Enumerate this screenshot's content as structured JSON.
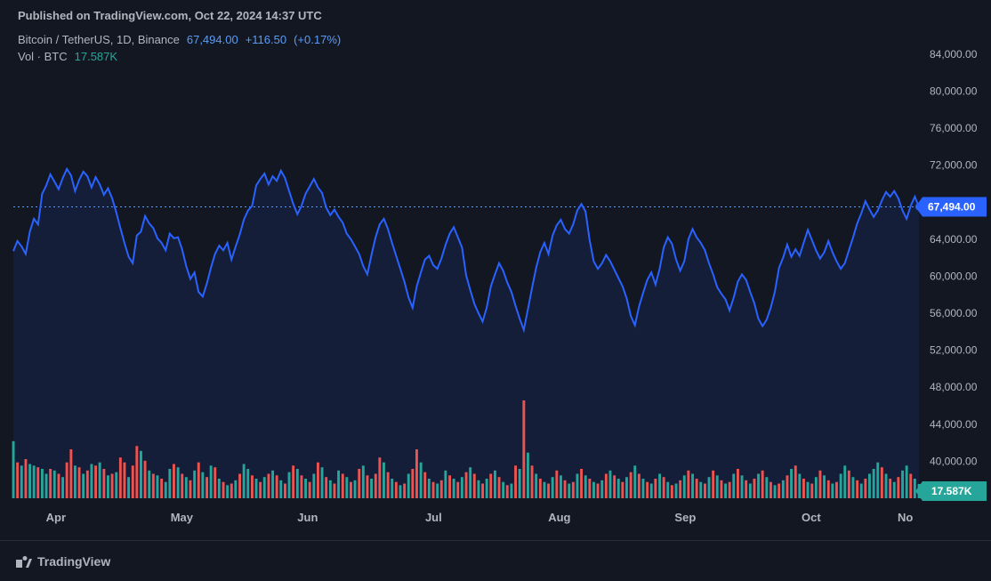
{
  "header": {
    "published_prefix": "Published on",
    "site": "TradingView.com",
    "date": "Oct 22, 2024 14:37 UTC"
  },
  "symbol": {
    "name": "Bitcoin / TetherUS, 1D, Binance",
    "last_price": "67,494.00",
    "change_abs": "+116.50",
    "change_pct": "(+0.17%)"
  },
  "volume": {
    "label": "Vol · BTC",
    "value": "17.587K"
  },
  "chart": {
    "type": "line+area+volume",
    "background_color": "#131722",
    "text_color": "#b2b5be",
    "line_color": "#2962ff",
    "area_fill_color": "rgba(41,98,255,0.10)",
    "dotted_line_color": "#5b9cf6",
    "price_badge_bg": "#2962ff",
    "price_badge_text": "67,494.00",
    "vol_badge_bg": "#26a69a",
    "vol_badge_text": "17.587K",
    "y": {
      "min": 36000,
      "max": 86000,
      "ticks": [
        40000,
        44000,
        48000,
        52000,
        56000,
        60000,
        64000,
        68000,
        72000,
        76000,
        80000,
        84000
      ],
      "tick_labels": [
        "40,000.00",
        "44,000.00",
        "48,000.00",
        "52,000.00",
        "56,000.00",
        "60,000.00",
        "64,000.00",
        "68,000.00",
        "72,000.00",
        "76,000.00",
        "80,000.00",
        "84,000.00"
      ]
    },
    "x": {
      "months": [
        "Apr",
        "May",
        "Jun",
        "Jul",
        "Aug",
        "Sep",
        "Oct",
        "No"
      ],
      "month_positions": [
        0.047,
        0.186,
        0.325,
        0.464,
        0.603,
        0.742,
        0.881,
        0.985
      ]
    },
    "current_price_y": 67494,
    "price_series": [
      62700,
      63800,
      63200,
      62400,
      64800,
      66200,
      65600,
      68900,
      69800,
      71000,
      70200,
      69400,
      70600,
      71600,
      70900,
      69200,
      70400,
      71300,
      70800,
      69600,
      70700,
      69900,
      68800,
      69500,
      68400,
      66900,
      65200,
      63600,
      62100,
      61400,
      64400,
      64800,
      66500,
      65700,
      65200,
      64100,
      63600,
      62800,
      64600,
      64100,
      64200,
      62900,
      61100,
      59700,
      60400,
      58300,
      57800,
      59200,
      60900,
      62400,
      63300,
      62800,
      63600,
      61800,
      63200,
      64500,
      66100,
      67100,
      67600,
      69800,
      70500,
      71100,
      69900,
      70800,
      70300,
      71400,
      70600,
      69200,
      67800,
      66700,
      67600,
      68900,
      69700,
      70500,
      69600,
      69000,
      67400,
      66600,
      67200,
      66400,
      65800,
      64600,
      64000,
      63200,
      62400,
      61100,
      60200,
      62300,
      64200,
      65600,
      66200,
      65100,
      63600,
      62200,
      60800,
      59400,
      57700,
      56600,
      58900,
      60400,
      61800,
      62200,
      61200,
      60800,
      61900,
      63400,
      64600,
      65300,
      64200,
      63100,
      60100,
      58500,
      57000,
      56000,
      55100,
      56600,
      58900,
      60200,
      61400,
      60600,
      59300,
      58300,
      56800,
      55400,
      54200,
      56400,
      58700,
      60900,
      62600,
      63600,
      62400,
      64400,
      65500,
      66100,
      65100,
      64600,
      65600,
      67100,
      67800,
      67000,
      63900,
      61600,
      60800,
      61400,
      62300,
      61600,
      60700,
      59800,
      58900,
      57600,
      55700,
      54700,
      56700,
      58200,
      59600,
      60400,
      59100,
      60800,
      63100,
      64200,
      63500,
      61800,
      60600,
      61600,
      64000,
      65100,
      64200,
      63600,
      62800,
      61400,
      60200,
      58800,
      58100,
      57500,
      56300,
      57700,
      59400,
      60200,
      59600,
      58300,
      57100,
      55400,
      54600,
      55300,
      56600,
      58300,
      60900,
      62000,
      63400,
      62100,
      62900,
      62200,
      63600,
      65000,
      63900,
      62800,
      61900,
      62600,
      63800,
      62600,
      61600,
      60800,
      61400,
      62800,
      64200,
      65700,
      66800,
      68100,
      67200,
      66400,
      67100,
      68200,
      69100,
      68600,
      69200,
      68400,
      67100,
      66200,
      67600,
      68600,
      67494
    ],
    "volume_up_color": "#26a69a",
    "volume_down_color": "#ef5350",
    "volume_max": 120,
    "volume_series": [
      {
        "v": 70,
        "d": "u"
      },
      {
        "v": 44,
        "d": "d"
      },
      {
        "v": 40,
        "d": "u"
      },
      {
        "v": 48,
        "d": "d"
      },
      {
        "v": 42,
        "d": "u"
      },
      {
        "v": 40,
        "d": "u"
      },
      {
        "v": 38,
        "d": "d"
      },
      {
        "v": 36,
        "d": "u"
      },
      {
        "v": 30,
        "d": "u"
      },
      {
        "v": 36,
        "d": "d"
      },
      {
        "v": 34,
        "d": "u"
      },
      {
        "v": 30,
        "d": "d"
      },
      {
        "v": 26,
        "d": "u"
      },
      {
        "v": 44,
        "d": "d"
      },
      {
        "v": 60,
        "d": "d"
      },
      {
        "v": 40,
        "d": "u"
      },
      {
        "v": 38,
        "d": "d"
      },
      {
        "v": 30,
        "d": "u"
      },
      {
        "v": 34,
        "d": "d"
      },
      {
        "v": 42,
        "d": "u"
      },
      {
        "v": 40,
        "d": "d"
      },
      {
        "v": 44,
        "d": "u"
      },
      {
        "v": 36,
        "d": "d"
      },
      {
        "v": 28,
        "d": "u"
      },
      {
        "v": 30,
        "d": "d"
      },
      {
        "v": 32,
        "d": "u"
      },
      {
        "v": 50,
        "d": "d"
      },
      {
        "v": 44,
        "d": "d"
      },
      {
        "v": 26,
        "d": "u"
      },
      {
        "v": 40,
        "d": "d"
      },
      {
        "v": 64,
        "d": "d"
      },
      {
        "v": 58,
        "d": "u"
      },
      {
        "v": 46,
        "d": "d"
      },
      {
        "v": 34,
        "d": "u"
      },
      {
        "v": 30,
        "d": "d"
      },
      {
        "v": 28,
        "d": "u"
      },
      {
        "v": 24,
        "d": "d"
      },
      {
        "v": 20,
        "d": "u"
      },
      {
        "v": 36,
        "d": "u"
      },
      {
        "v": 42,
        "d": "d"
      },
      {
        "v": 38,
        "d": "u"
      },
      {
        "v": 30,
        "d": "d"
      },
      {
        "v": 26,
        "d": "u"
      },
      {
        "v": 22,
        "d": "d"
      },
      {
        "v": 34,
        "d": "u"
      },
      {
        "v": 44,
        "d": "d"
      },
      {
        "v": 32,
        "d": "u"
      },
      {
        "v": 26,
        "d": "d"
      },
      {
        "v": 40,
        "d": "u"
      },
      {
        "v": 38,
        "d": "d"
      },
      {
        "v": 24,
        "d": "u"
      },
      {
        "v": 20,
        "d": "d"
      },
      {
        "v": 16,
        "d": "u"
      },
      {
        "v": 18,
        "d": "d"
      },
      {
        "v": 22,
        "d": "u"
      },
      {
        "v": 30,
        "d": "d"
      },
      {
        "v": 42,
        "d": "u"
      },
      {
        "v": 36,
        "d": "u"
      },
      {
        "v": 28,
        "d": "d"
      },
      {
        "v": 24,
        "d": "u"
      },
      {
        "v": 20,
        "d": "d"
      },
      {
        "v": 26,
        "d": "u"
      },
      {
        "v": 30,
        "d": "d"
      },
      {
        "v": 34,
        "d": "u"
      },
      {
        "v": 28,
        "d": "d"
      },
      {
        "v": 22,
        "d": "u"
      },
      {
        "v": 18,
        "d": "d"
      },
      {
        "v": 32,
        "d": "u"
      },
      {
        "v": 40,
        "d": "d"
      },
      {
        "v": 36,
        "d": "u"
      },
      {
        "v": 28,
        "d": "d"
      },
      {
        "v": 24,
        "d": "u"
      },
      {
        "v": 20,
        "d": "d"
      },
      {
        "v": 30,
        "d": "u"
      },
      {
        "v": 44,
        "d": "d"
      },
      {
        "v": 38,
        "d": "u"
      },
      {
        "v": 26,
        "d": "d"
      },
      {
        "v": 22,
        "d": "u"
      },
      {
        "v": 18,
        "d": "d"
      },
      {
        "v": 34,
        "d": "u"
      },
      {
        "v": 30,
        "d": "d"
      },
      {
        "v": 26,
        "d": "u"
      },
      {
        "v": 20,
        "d": "d"
      },
      {
        "v": 22,
        "d": "u"
      },
      {
        "v": 36,
        "d": "d"
      },
      {
        "v": 40,
        "d": "u"
      },
      {
        "v": 28,
        "d": "d"
      },
      {
        "v": 24,
        "d": "u"
      },
      {
        "v": 30,
        "d": "d"
      },
      {
        "v": 50,
        "d": "d"
      },
      {
        "v": 44,
        "d": "u"
      },
      {
        "v": 32,
        "d": "d"
      },
      {
        "v": 24,
        "d": "u"
      },
      {
        "v": 20,
        "d": "d"
      },
      {
        "v": 16,
        "d": "u"
      },
      {
        "v": 18,
        "d": "d"
      },
      {
        "v": 30,
        "d": "u"
      },
      {
        "v": 36,
        "d": "d"
      },
      {
        "v": 60,
        "d": "d"
      },
      {
        "v": 44,
        "d": "u"
      },
      {
        "v": 32,
        "d": "d"
      },
      {
        "v": 24,
        "d": "u"
      },
      {
        "v": 20,
        "d": "d"
      },
      {
        "v": 18,
        "d": "u"
      },
      {
        "v": 22,
        "d": "d"
      },
      {
        "v": 34,
        "d": "u"
      },
      {
        "v": 28,
        "d": "d"
      },
      {
        "v": 24,
        "d": "u"
      },
      {
        "v": 20,
        "d": "d"
      },
      {
        "v": 26,
        "d": "u"
      },
      {
        "v": 32,
        "d": "d"
      },
      {
        "v": 38,
        "d": "u"
      },
      {
        "v": 30,
        "d": "d"
      },
      {
        "v": 22,
        "d": "u"
      },
      {
        "v": 18,
        "d": "d"
      },
      {
        "v": 24,
        "d": "u"
      },
      {
        "v": 30,
        "d": "d"
      },
      {
        "v": 34,
        "d": "u"
      },
      {
        "v": 26,
        "d": "d"
      },
      {
        "v": 20,
        "d": "u"
      },
      {
        "v": 16,
        "d": "d"
      },
      {
        "v": 18,
        "d": "u"
      },
      {
        "v": 40,
        "d": "d"
      },
      {
        "v": 36,
        "d": "u"
      },
      {
        "v": 120,
        "d": "d"
      },
      {
        "v": 56,
        "d": "u"
      },
      {
        "v": 40,
        "d": "d"
      },
      {
        "v": 30,
        "d": "u"
      },
      {
        "v": 24,
        "d": "d"
      },
      {
        "v": 20,
        "d": "u"
      },
      {
        "v": 18,
        "d": "d"
      },
      {
        "v": 26,
        "d": "u"
      },
      {
        "v": 34,
        "d": "d"
      },
      {
        "v": 28,
        "d": "u"
      },
      {
        "v": 22,
        "d": "d"
      },
      {
        "v": 18,
        "d": "u"
      },
      {
        "v": 20,
        "d": "d"
      },
      {
        "v": 30,
        "d": "u"
      },
      {
        "v": 36,
        "d": "d"
      },
      {
        "v": 28,
        "d": "u"
      },
      {
        "v": 24,
        "d": "d"
      },
      {
        "v": 20,
        "d": "u"
      },
      {
        "v": 18,
        "d": "d"
      },
      {
        "v": 22,
        "d": "u"
      },
      {
        "v": 30,
        "d": "d"
      },
      {
        "v": 34,
        "d": "u"
      },
      {
        "v": 28,
        "d": "d"
      },
      {
        "v": 24,
        "d": "u"
      },
      {
        "v": 20,
        "d": "d"
      },
      {
        "v": 26,
        "d": "u"
      },
      {
        "v": 32,
        "d": "d"
      },
      {
        "v": 40,
        "d": "u"
      },
      {
        "v": 30,
        "d": "d"
      },
      {
        "v": 24,
        "d": "u"
      },
      {
        "v": 20,
        "d": "d"
      },
      {
        "v": 18,
        "d": "u"
      },
      {
        "v": 24,
        "d": "d"
      },
      {
        "v": 30,
        "d": "u"
      },
      {
        "v": 26,
        "d": "d"
      },
      {
        "v": 20,
        "d": "u"
      },
      {
        "v": 16,
        "d": "d"
      },
      {
        "v": 18,
        "d": "u"
      },
      {
        "v": 22,
        "d": "d"
      },
      {
        "v": 28,
        "d": "u"
      },
      {
        "v": 34,
        "d": "d"
      },
      {
        "v": 30,
        "d": "u"
      },
      {
        "v": 24,
        "d": "d"
      },
      {
        "v": 20,
        "d": "u"
      },
      {
        "v": 18,
        "d": "d"
      },
      {
        "v": 26,
        "d": "u"
      },
      {
        "v": 34,
        "d": "d"
      },
      {
        "v": 28,
        "d": "u"
      },
      {
        "v": 22,
        "d": "d"
      },
      {
        "v": 18,
        "d": "u"
      },
      {
        "v": 20,
        "d": "d"
      },
      {
        "v": 30,
        "d": "u"
      },
      {
        "v": 36,
        "d": "d"
      },
      {
        "v": 28,
        "d": "u"
      },
      {
        "v": 22,
        "d": "d"
      },
      {
        "v": 18,
        "d": "u"
      },
      {
        "v": 24,
        "d": "d"
      },
      {
        "v": 30,
        "d": "u"
      },
      {
        "v": 34,
        "d": "d"
      },
      {
        "v": 26,
        "d": "u"
      },
      {
        "v": 20,
        "d": "d"
      },
      {
        "v": 16,
        "d": "u"
      },
      {
        "v": 18,
        "d": "d"
      },
      {
        "v": 22,
        "d": "u"
      },
      {
        "v": 28,
        "d": "d"
      },
      {
        "v": 36,
        "d": "u"
      },
      {
        "v": 40,
        "d": "d"
      },
      {
        "v": 30,
        "d": "u"
      },
      {
        "v": 24,
        "d": "d"
      },
      {
        "v": 20,
        "d": "u"
      },
      {
        "v": 18,
        "d": "d"
      },
      {
        "v": 26,
        "d": "u"
      },
      {
        "v": 34,
        "d": "d"
      },
      {
        "v": 28,
        "d": "u"
      },
      {
        "v": 22,
        "d": "d"
      },
      {
        "v": 18,
        "d": "u"
      },
      {
        "v": 20,
        "d": "d"
      },
      {
        "v": 30,
        "d": "u"
      },
      {
        "v": 40,
        "d": "u"
      },
      {
        "v": 34,
        "d": "d"
      },
      {
        "v": 26,
        "d": "u"
      },
      {
        "v": 22,
        "d": "d"
      },
      {
        "v": 18,
        "d": "u"
      },
      {
        "v": 24,
        "d": "d"
      },
      {
        "v": 30,
        "d": "u"
      },
      {
        "v": 36,
        "d": "u"
      },
      {
        "v": 44,
        "d": "u"
      },
      {
        "v": 38,
        "d": "d"
      },
      {
        "v": 30,
        "d": "u"
      },
      {
        "v": 24,
        "d": "d"
      },
      {
        "v": 20,
        "d": "u"
      },
      {
        "v": 26,
        "d": "d"
      },
      {
        "v": 34,
        "d": "u"
      },
      {
        "v": 40,
        "d": "u"
      },
      {
        "v": 30,
        "d": "d"
      },
      {
        "v": 24,
        "d": "u"
      },
      {
        "v": 17.6,
        "d": "u"
      }
    ]
  },
  "footer": {
    "brand": "TradingView"
  }
}
